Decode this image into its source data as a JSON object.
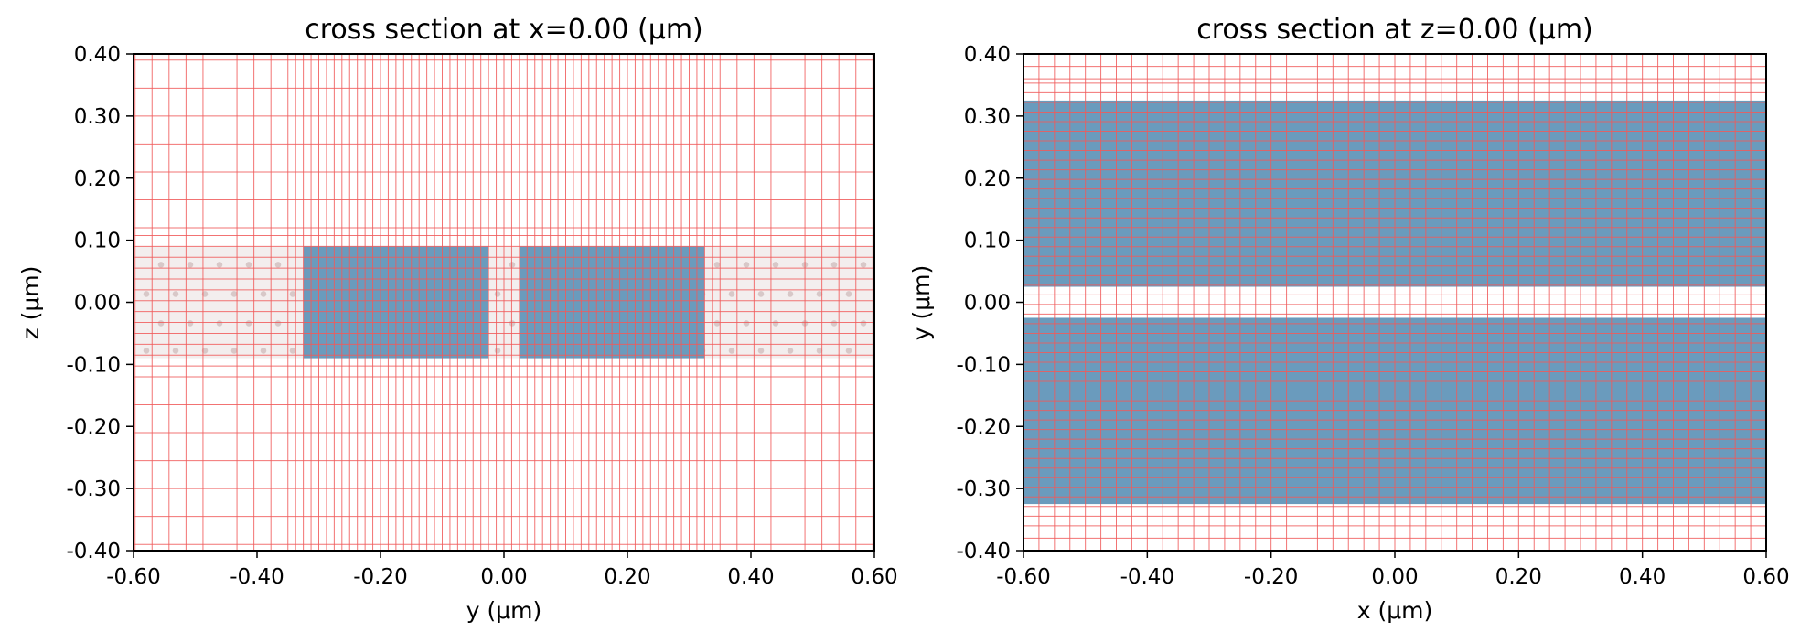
{
  "chart_data": [
    {
      "type": "heatmap",
      "title": "cross section at x=0.00 (μm)",
      "xlabel": "y (μm)",
      "ylabel": "z (μm)",
      "xlim": [
        -0.6,
        0.6
      ],
      "ylim": [
        -0.4,
        0.4
      ],
      "xticks": [
        -0.6,
        -0.4,
        -0.2,
        0.0,
        0.2,
        0.4,
        0.6
      ],
      "xtick_labels": [
        "-0.60",
        "-0.40",
        "-0.20",
        "0.00",
        "0.20",
        "0.40",
        "0.60"
      ],
      "yticks": [
        0.4,
        0.3,
        0.2,
        0.1,
        0.0,
        -0.1,
        -0.2,
        -0.3,
        -0.4
      ],
      "ytick_labels": [
        "0.40",
        "0.30",
        "0.20",
        "0.10",
        "0.00",
        "-0.10",
        "-0.20",
        "-0.30",
        "-0.40"
      ],
      "background_slab": {
        "x0": -0.6,
        "x1": 0.6,
        "y0": -0.09,
        "y1": 0.09,
        "pattern": "dots"
      },
      "structures": [
        {
          "x0": -0.325,
          "x1": -0.025,
          "y0": -0.09,
          "y1": 0.09,
          "color": "#6a9bbd"
        },
        {
          "x0": 0.025,
          "x1": 0.325,
          "y0": -0.09,
          "y1": 0.09,
          "color": "#6a9bbd"
        }
      ],
      "grid_color": "#f05a5a",
      "grid_x": {
        "outer_step": 0.0275,
        "inner_step": 0.0125,
        "inner_range": [
          -0.35,
          0.35
        ]
      },
      "grid_y": {
        "outer_step": 0.045,
        "inner_step": 0.0175,
        "inner_range": [
          -0.12,
          0.12
        ]
      }
    },
    {
      "type": "heatmap",
      "title": "cross section at z=0.00 (μm)",
      "xlabel": "x (μm)",
      "ylabel": "y (μm)",
      "xlim": [
        -0.6,
        0.6
      ],
      "ylim": [
        -0.4,
        0.4
      ],
      "xticks": [
        -0.6,
        -0.4,
        -0.2,
        0.0,
        0.2,
        0.4,
        0.6
      ],
      "xtick_labels": [
        "-0.60",
        "-0.40",
        "-0.20",
        "0.00",
        "0.20",
        "0.40",
        "0.60"
      ],
      "yticks": [
        0.4,
        0.3,
        0.2,
        0.1,
        0.0,
        -0.1,
        -0.2,
        -0.3,
        -0.4
      ],
      "ytick_labels": [
        "0.40",
        "0.30",
        "0.20",
        "0.10",
        "0.00",
        "-0.10",
        "-0.20",
        "-0.30",
        "-0.40"
      ],
      "structures": [
        {
          "x0": -0.6,
          "x1": 0.6,
          "y0": 0.025,
          "y1": 0.325,
          "color": "#6a9bbd"
        },
        {
          "x0": -0.6,
          "x1": 0.6,
          "y0": -0.325,
          "y1": -0.025,
          "color": "#6a9bbd"
        }
      ],
      "grid_color": "#f05a5a",
      "grid_x": {
        "outer_step": 0.025,
        "inner_step": 0.025,
        "inner_range": [
          -0.6,
          0.6
        ]
      },
      "grid_y": {
        "outer_step": 0.02,
        "inner_step": 0.0155,
        "inner_range": [
          -0.36,
          0.36
        ]
      }
    }
  ]
}
